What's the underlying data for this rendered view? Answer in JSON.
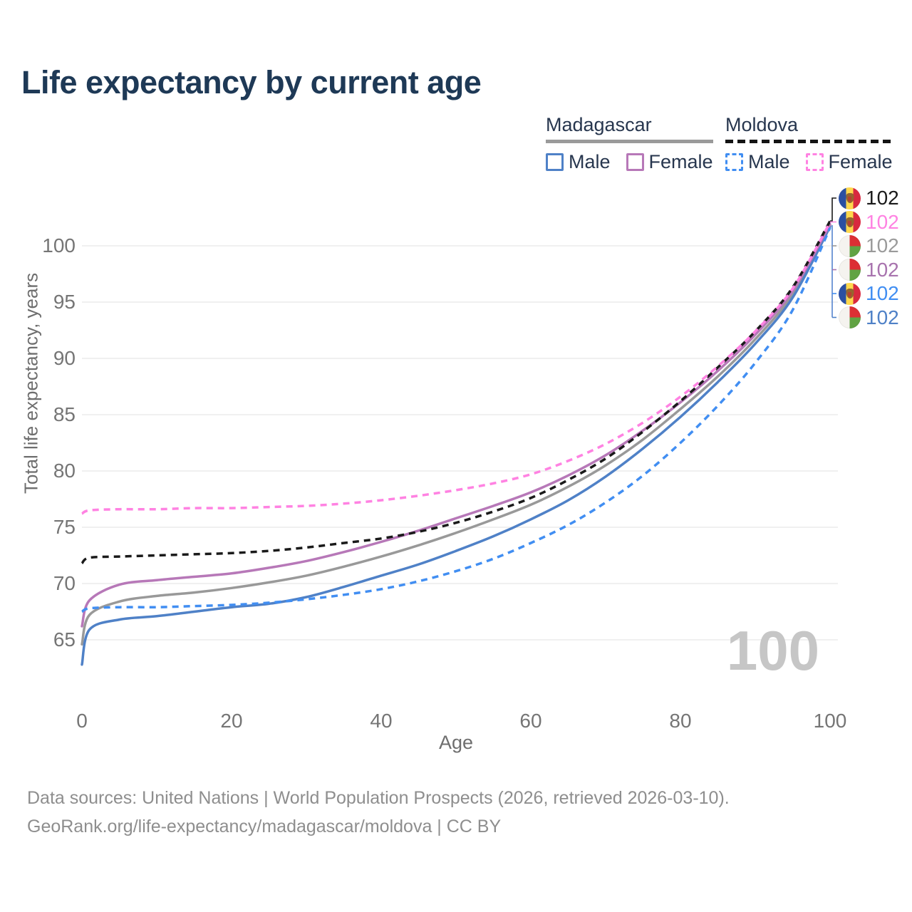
{
  "title": "Life expectancy by current age",
  "legend": {
    "madagascar": {
      "label": "Madagascar",
      "male": "Male",
      "female": "Female"
    },
    "moldova": {
      "label": "Moldova",
      "male": "Male",
      "female": "Female"
    }
  },
  "chart_data": {
    "type": "line",
    "title": "Life expectancy by current age",
    "xlabel": "Age",
    "ylabel": "Total life expectancy, years",
    "xlim": [
      0,
      100
    ],
    "ylim": [
      62,
      103
    ],
    "x_ticks": [
      0,
      20,
      40,
      60,
      80,
      100
    ],
    "y_ticks": [
      65,
      70,
      75,
      80,
      85,
      90,
      95,
      100
    ],
    "grid": "horizontal",
    "legend_position": "top-right",
    "x": [
      0,
      1,
      5,
      10,
      15,
      20,
      25,
      30,
      35,
      40,
      45,
      50,
      55,
      60,
      65,
      70,
      75,
      80,
      85,
      90,
      95,
      100
    ],
    "series": [
      {
        "name": "Madagascar Total",
        "country": "Madagascar",
        "color": "#999999",
        "style": "solid",
        "end_label": "102",
        "values": [
          64.6,
          67.2,
          68.4,
          68.9,
          69.2,
          69.6,
          70.1,
          70.7,
          71.5,
          72.4,
          73.4,
          74.5,
          75.7,
          77.0,
          78.6,
          80.5,
          82.8,
          85.5,
          88.4,
          91.7,
          95.7,
          101.8
        ]
      },
      {
        "name": "Madagascar Male",
        "country": "Madagascar",
        "color": "#4f81c7",
        "style": "solid",
        "end_label": "102",
        "values": [
          62.8,
          65.9,
          66.8,
          67.1,
          67.5,
          67.9,
          68.2,
          68.8,
          69.7,
          70.7,
          71.7,
          72.9,
          74.2,
          75.7,
          77.4,
          79.5,
          82.0,
          84.8,
          87.9,
          91.3,
          95.4,
          101.7
        ]
      },
      {
        "name": "Madagascar Female",
        "country": "Madagascar",
        "color": "#b778b8",
        "style": "solid",
        "end_label": "102",
        "values": [
          66.2,
          68.5,
          69.9,
          70.3,
          70.6,
          70.9,
          71.4,
          72.0,
          72.8,
          73.7,
          74.7,
          75.8,
          76.9,
          78.1,
          79.6,
          81.4,
          83.6,
          86.1,
          88.9,
          92.1,
          96.0,
          101.9
        ]
      },
      {
        "name": "Moldova Male",
        "country": "Moldova",
        "color": "#418ef2",
        "style": "dashed",
        "end_label": "102",
        "values": [
          67.5,
          67.8,
          67.9,
          67.9,
          68.0,
          68.1,
          68.3,
          68.6,
          69.0,
          69.5,
          70.2,
          71.1,
          72.2,
          73.6,
          75.2,
          77.2,
          79.6,
          82.5,
          85.8,
          89.6,
          94.3,
          101.6
        ]
      },
      {
        "name": "Moldova Total",
        "country": "Moldova",
        "color": "#1a1a1a",
        "style": "dashed",
        "end_label": "102",
        "values": [
          71.8,
          72.3,
          72.4,
          72.5,
          72.6,
          72.7,
          72.9,
          73.2,
          73.6,
          74.0,
          74.6,
          75.4,
          76.4,
          77.6,
          79.2,
          81.1,
          83.5,
          86.2,
          89.2,
          92.4,
          96.3,
          102.2
        ]
      },
      {
        "name": "Moldova Female",
        "country": "Moldova",
        "color": "#ff82e2",
        "style": "dashed",
        "end_label": "102",
        "values": [
          76.2,
          76.5,
          76.6,
          76.6,
          76.7,
          76.7,
          76.8,
          76.9,
          77.1,
          77.4,
          77.8,
          78.3,
          78.9,
          79.7,
          80.9,
          82.4,
          84.3,
          86.6,
          89.3,
          92.4,
          96.2,
          102.1
        ]
      }
    ]
  },
  "end_labels": [
    {
      "flag": "moldova",
      "series": "Moldova Total",
      "color": "#1a1a1a",
      "value": "102"
    },
    {
      "flag": "moldova",
      "series": "Moldova Female",
      "color": "#ff82e2",
      "value": "102"
    },
    {
      "flag": "madagascar",
      "series": "Madagascar Total",
      "color": "#9a9a9a",
      "value": "102"
    },
    {
      "flag": "madagascar",
      "series": "Madagascar Female",
      "color": "#a873ae",
      "value": "102"
    },
    {
      "flag": "moldova",
      "series": "Moldova Male",
      "color": "#418ef2",
      "value": "102"
    },
    {
      "flag": "madagascar",
      "series": "Madagascar Male",
      "color": "#4f81c7",
      "value": "102"
    }
  ],
  "watermark": "100",
  "footer": {
    "line1": "Data sources: United Nations | World Population Prospects (2026, retrieved 2026-03-10).",
    "line2": "GeoRank.org/life-expectancy/madagascar/moldova | CC BY"
  }
}
